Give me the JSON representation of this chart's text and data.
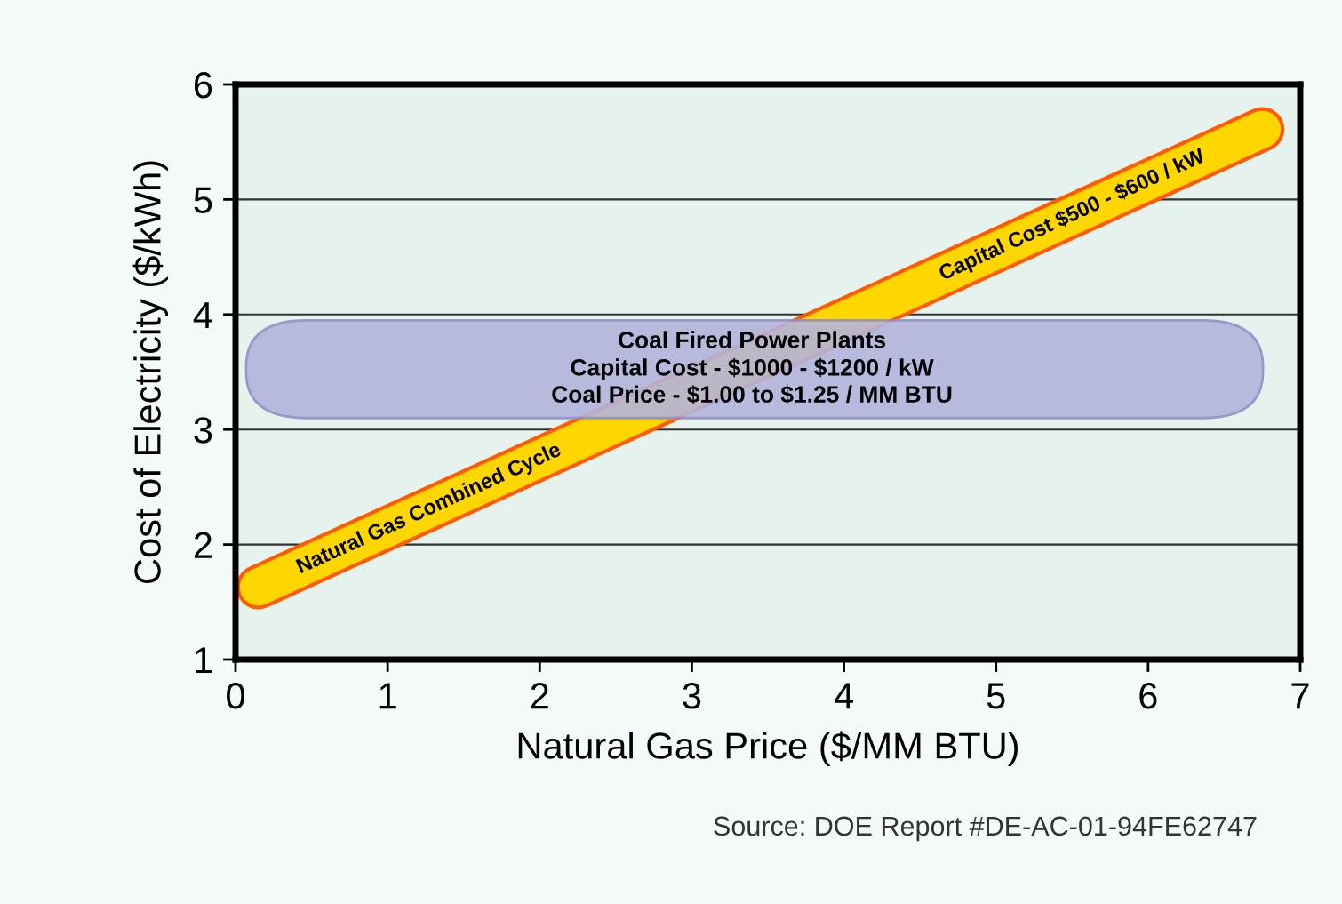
{
  "chart_data": {
    "type": "line",
    "xlabel": "Natural Gas Price ($/MM BTU)",
    "ylabel": "Cost of Electricity ($/kWh)",
    "series": [
      {
        "name": "Natural Gas Combined Cycle",
        "color": "#ffd700",
        "x": [
          0.15,
          6.75
        ],
        "values": [
          1.63,
          5.61
        ]
      }
    ],
    "bands": [
      {
        "axis": "y",
        "from": 3.1,
        "to": 3.95,
        "color": "#b4b4dc",
        "label": "Coal Fired Power Plants\nCapital Cost - $1000 - $1200 / kW\nCoal Price - $1.00 to $1.25 / MM BTU"
      }
    ],
    "annotations": [
      {
        "text": "Capital Cost $500 - $600 / kW",
        "x": 5.5,
        "y": 4.86
      },
      "Source: DOE Report #DE-AC-01-94FE62747"
    ],
    "xlim": [
      0,
      7
    ],
    "ylim": [
      1,
      6
    ],
    "xticks": [
      0,
      1,
      2,
      3,
      4,
      5,
      6,
      7
    ],
    "yticks": [
      1,
      2,
      3,
      4,
      5,
      6
    ],
    "grid": "y",
    "legend": false
  }
}
